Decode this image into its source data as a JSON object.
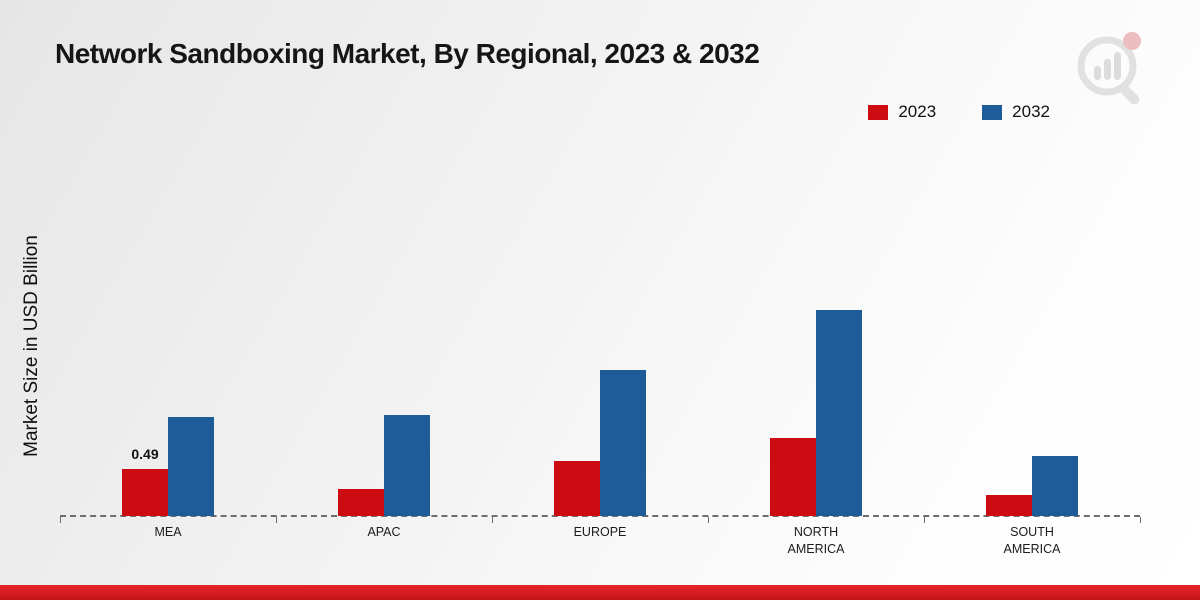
{
  "title": "Network Sandboxing Market, By Regional, 2023 & 2032",
  "legend": {
    "items": [
      {
        "label": "2023",
        "color": "#cc0c12"
      },
      {
        "label": "2032",
        "color": "#1e5c99"
      }
    ]
  },
  "colors": {
    "series_2023": "#cc0c12",
    "series_2032": "#1e5c99",
    "bottom_strip": "#d51a1f",
    "baseline": "#6e6e6e"
  },
  "chart_data": {
    "type": "bar",
    "title": "Network Sandboxing Market, By Regional, 2023 & 2032",
    "xlabel": "",
    "ylabel": "Market Size in USD Billion",
    "categories": [
      "MEA",
      "APAC",
      "EUROPE",
      "NORTH AMERICA",
      "SOUTH AMERICA"
    ],
    "series": [
      {
        "name": "2023",
        "color": "#cc0c12",
        "values": [
          0.49,
          0.28,
          0.57,
          0.81,
          0.22
        ]
      },
      {
        "name": "2032",
        "color": "#1e5c99",
        "values": [
          1.03,
          1.05,
          1.52,
          2.15,
          0.63
        ]
      }
    ],
    "value_labels": [
      {
        "category": "MEA",
        "series": "2023",
        "text": "0.49"
      }
    ],
    "ylim": [
      0,
      2.4
    ],
    "grid": false,
    "legend_position": "top-right",
    "baseline_style": "dashed"
  }
}
